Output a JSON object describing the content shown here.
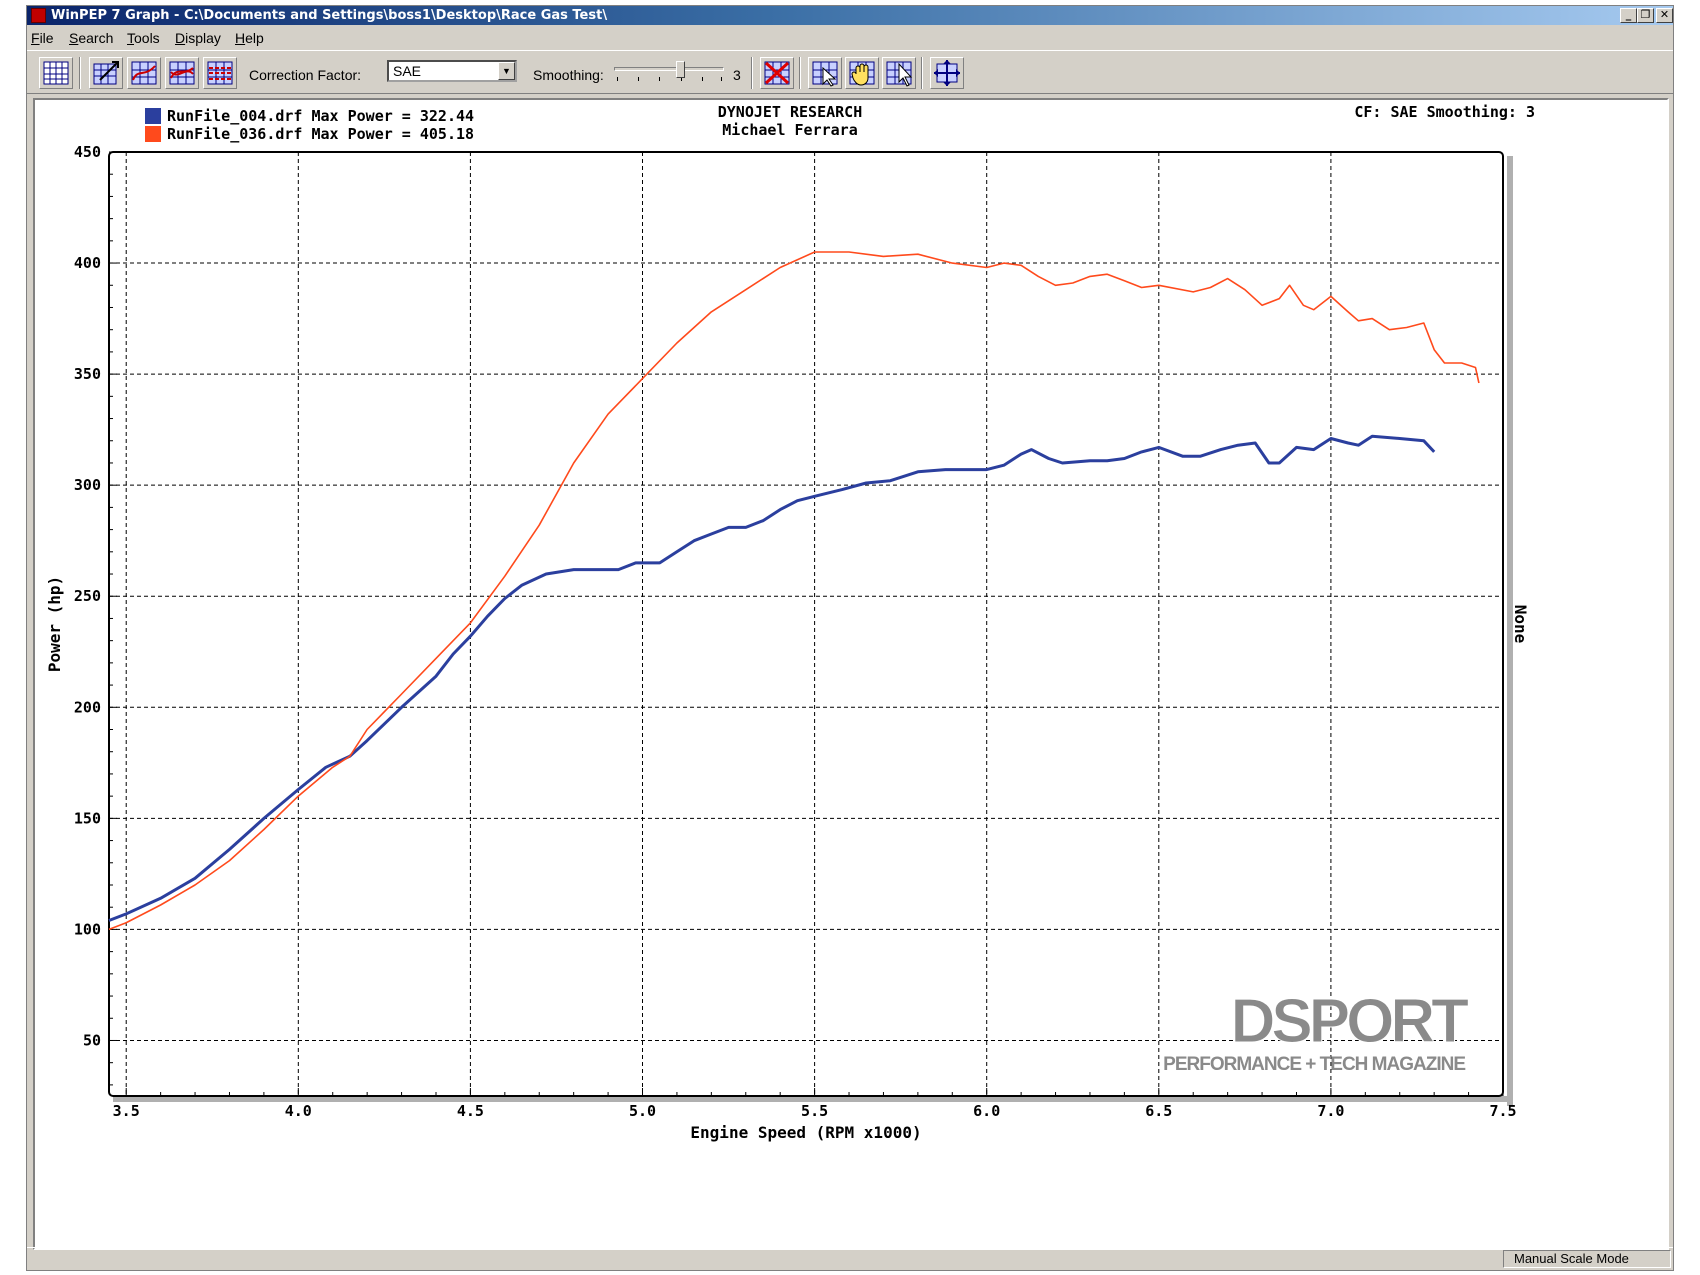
{
  "window": {
    "title": "WinPEP 7   Graph - C:\\Documents and Settings\\boss1\\Desktop\\Race Gas Test\\",
    "controls": {
      "minimize": "_",
      "restore": "❐",
      "close": "✕"
    }
  },
  "menu": [
    {
      "accel": "F",
      "rest": "ile"
    },
    {
      "accel": "S",
      "rest": "earch"
    },
    {
      "accel": "T",
      "rest": "ools"
    },
    {
      "accel": "D",
      "rest": "isplay"
    },
    {
      "accel": "H",
      "rest": "elp"
    }
  ],
  "toolbar": {
    "correction_label": "Correction Factor:",
    "correction_value": "SAE",
    "smoothing_label": "Smoothing:",
    "smoothing_value": "3",
    "smoothing_level": 3
  },
  "header": {
    "company": "DYNOJET RESEARCH",
    "operator": "Michael Ferrara",
    "cf_info": "CF: SAE  Smoothing: 3"
  },
  "right_axis_label": "None",
  "watermark": {
    "brand": "DSPORT",
    "tagline": "PERFORMANCE + TECH MAGAZINE"
  },
  "status": {
    "mode": "Manual Scale Mode"
  },
  "colors": {
    "blue_series": "#2b3f9e",
    "red_series": "#ff4a1c"
  },
  "chart_data": {
    "type": "line",
    "xlabel": "Engine Speed (RPM x1000)",
    "ylabel": "Power (hp)",
    "xlim": [
      3.45,
      7.5
    ],
    "ylim": [
      25,
      450
    ],
    "x_ticks": [
      "3.5",
      "4.0",
      "4.5",
      "5.0",
      "5.5",
      "6.0",
      "6.5",
      "7.0",
      "7.5"
    ],
    "y_ticks": [
      "50",
      "100",
      "150",
      "200",
      "250",
      "300",
      "350",
      "400",
      "450"
    ],
    "grid": true,
    "legend_position": "top-left",
    "series": [
      {
        "name": "RunFile_004.drf Max Power = 322.44",
        "color": "#2b3f9e",
        "points": [
          [
            3.45,
            104
          ],
          [
            3.5,
            107
          ],
          [
            3.6,
            114
          ],
          [
            3.7,
            123
          ],
          [
            3.8,
            136
          ],
          [
            3.9,
            150
          ],
          [
            4.0,
            163
          ],
          [
            4.08,
            173
          ],
          [
            4.15,
            178
          ],
          [
            4.2,
            185
          ],
          [
            4.3,
            200
          ],
          [
            4.4,
            214
          ],
          [
            4.45,
            224
          ],
          [
            4.5,
            232
          ],
          [
            4.55,
            241
          ],
          [
            4.6,
            249
          ],
          [
            4.65,
            255
          ],
          [
            4.72,
            260
          ],
          [
            4.8,
            262
          ],
          [
            4.85,
            262
          ],
          [
            4.93,
            262
          ],
          [
            4.98,
            265
          ],
          [
            5.05,
            265
          ],
          [
            5.1,
            270
          ],
          [
            5.15,
            275
          ],
          [
            5.2,
            278
          ],
          [
            5.25,
            281
          ],
          [
            5.3,
            281
          ],
          [
            5.35,
            284
          ],
          [
            5.4,
            289
          ],
          [
            5.45,
            293
          ],
          [
            5.5,
            295
          ],
          [
            5.58,
            298
          ],
          [
            5.65,
            301
          ],
          [
            5.72,
            302
          ],
          [
            5.8,
            306
          ],
          [
            5.88,
            307
          ],
          [
            5.95,
            307
          ],
          [
            6.0,
            307
          ],
          [
            6.05,
            309
          ],
          [
            6.1,
            314
          ],
          [
            6.13,
            316
          ],
          [
            6.18,
            312
          ],
          [
            6.22,
            310
          ],
          [
            6.3,
            311
          ],
          [
            6.35,
            311
          ],
          [
            6.4,
            312
          ],
          [
            6.45,
            315
          ],
          [
            6.5,
            317
          ],
          [
            6.57,
            313
          ],
          [
            6.62,
            313
          ],
          [
            6.68,
            316
          ],
          [
            6.73,
            318
          ],
          [
            6.78,
            319
          ],
          [
            6.82,
            310
          ],
          [
            6.85,
            310
          ],
          [
            6.9,
            317
          ],
          [
            6.95,
            316
          ],
          [
            7.0,
            321
          ],
          [
            7.05,
            319
          ],
          [
            7.08,
            318
          ],
          [
            7.12,
            322
          ],
          [
            7.2,
            321
          ],
          [
            7.27,
            320
          ],
          [
            7.3,
            315
          ]
        ]
      },
      {
        "name": "RunFile_036.drf Max Power = 405.18",
        "color": "#ff4a1c",
        "points": [
          [
            3.45,
            100
          ],
          [
            3.5,
            103
          ],
          [
            3.6,
            111
          ],
          [
            3.7,
            120
          ],
          [
            3.8,
            131
          ],
          [
            3.9,
            145
          ],
          [
            4.0,
            160
          ],
          [
            4.1,
            173
          ],
          [
            4.15,
            178
          ],
          [
            4.2,
            190
          ],
          [
            4.3,
            206
          ],
          [
            4.4,
            222
          ],
          [
            4.5,
            238
          ],
          [
            4.6,
            259
          ],
          [
            4.7,
            282
          ],
          [
            4.8,
            310
          ],
          [
            4.9,
            332
          ],
          [
            5.0,
            348
          ],
          [
            5.1,
            364
          ],
          [
            5.2,
            378
          ],
          [
            5.3,
            388
          ],
          [
            5.4,
            398
          ],
          [
            5.5,
            405
          ],
          [
            5.6,
            405
          ],
          [
            5.7,
            403
          ],
          [
            5.8,
            404
          ],
          [
            5.9,
            400
          ],
          [
            6.0,
            398
          ],
          [
            6.05,
            400
          ],
          [
            6.1,
            399
          ],
          [
            6.15,
            394
          ],
          [
            6.2,
            390
          ],
          [
            6.25,
            391
          ],
          [
            6.3,
            394
          ],
          [
            6.35,
            395
          ],
          [
            6.4,
            392
          ],
          [
            6.45,
            389
          ],
          [
            6.5,
            390
          ],
          [
            6.6,
            387
          ],
          [
            6.65,
            389
          ],
          [
            6.7,
            393
          ],
          [
            6.75,
            388
          ],
          [
            6.8,
            381
          ],
          [
            6.85,
            384
          ],
          [
            6.88,
            390
          ],
          [
            6.92,
            381
          ],
          [
            6.95,
            379
          ],
          [
            7.0,
            385
          ],
          [
            7.05,
            378
          ],
          [
            7.08,
            374
          ],
          [
            7.12,
            375
          ],
          [
            7.17,
            370
          ],
          [
            7.22,
            371
          ],
          [
            7.27,
            373
          ],
          [
            7.3,
            361
          ],
          [
            7.33,
            355
          ],
          [
            7.38,
            355
          ],
          [
            7.42,
            353
          ],
          [
            7.43,
            346
          ]
        ]
      }
    ]
  }
}
